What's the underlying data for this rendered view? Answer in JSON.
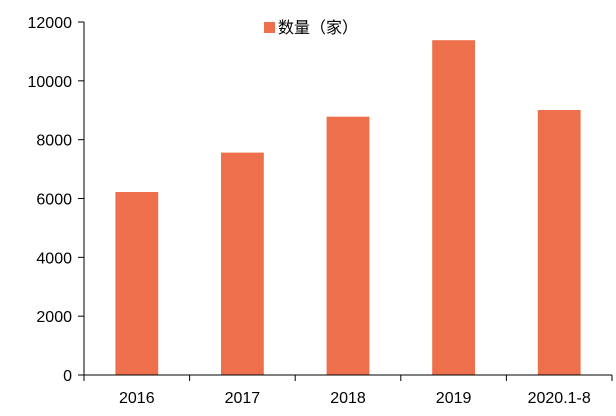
{
  "chart_data": {
    "type": "bar",
    "categories": [
      "2016",
      "2017",
      "2018",
      "2019",
      "2020.1-8"
    ],
    "series": [
      {
        "name": "数量（家）",
        "values": [
          6220,
          7560,
          8780,
          11380,
          9010
        ],
        "color": "#ED6F4B"
      }
    ],
    "ylim": [
      0,
      12000
    ],
    "yticks": [
      0,
      2000,
      4000,
      6000,
      8000,
      10000,
      12000
    ],
    "grid": false,
    "legend_position": "top-center"
  }
}
